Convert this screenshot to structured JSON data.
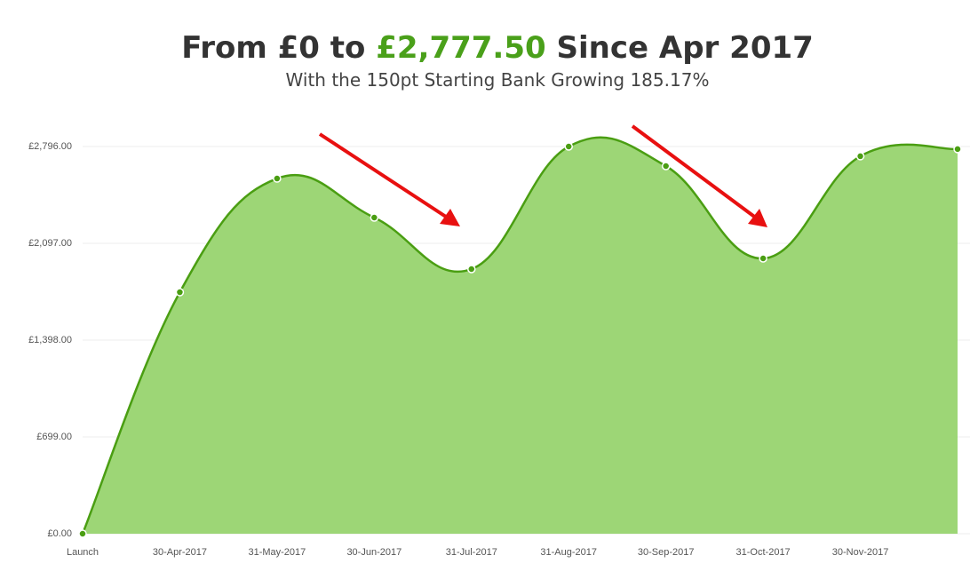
{
  "chart_data": {
    "type": "area",
    "title": {
      "prefix": "From £0 to ",
      "highlight": "£2,777.50",
      "suffix": " Since Apr 2017"
    },
    "subtitle": "With the 150pt Starting Bank Growing 185.17%",
    "categories": [
      "Launch",
      "30-Apr-2017",
      "31-May-2017",
      "30-Jun-2017",
      "31-Jul-2017",
      "31-Aug-2017",
      "30-Sep-2017",
      "31-Oct-2017",
      "30-Nov-2017",
      null
    ],
    "values": [
      0,
      1744,
      2565,
      2283,
      1911,
      2796,
      2655,
      1988,
      2726,
      2777.5
    ],
    "color": "#4a9e12",
    "fill": "#9dd676",
    "ylim": [
      0,
      2796
    ],
    "yticks": [
      {
        "value": 0,
        "label": "£0.00"
      },
      {
        "value": 699,
        "label": "£699.00"
      },
      {
        "value": 1398,
        "label": "£1,398.00"
      },
      {
        "value": 2097,
        "label": "£2,097.00"
      },
      {
        "value": 2796,
        "label": "£2,796.00"
      }
    ],
    "grid": true
  }
}
